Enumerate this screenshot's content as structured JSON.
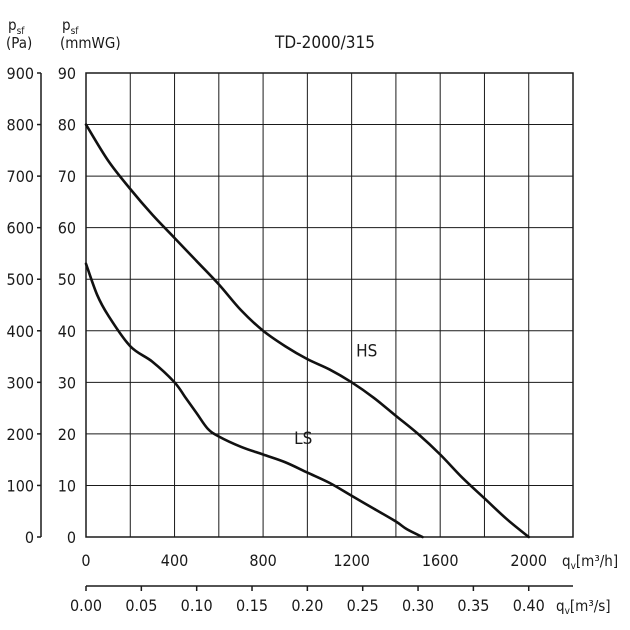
{
  "chart_data": {
    "type": "line",
    "title": "TD-2000/315",
    "y_left": {
      "symbol": "p",
      "subscript": "sf",
      "unit": "(Pa)",
      "ylim": [
        0,
        900
      ],
      "ticks": [
        0,
        100,
        200,
        300,
        400,
        500,
        600,
        700,
        800,
        900
      ]
    },
    "y_right": {
      "symbol": "p",
      "subscript": "sf",
      "unit": "(mmWG)",
      "ylim": [
        0,
        90
      ],
      "ticks": [
        0,
        10,
        20,
        30,
        40,
        50,
        60,
        70,
        80,
        90
      ]
    },
    "x_main": {
      "symbol": "q",
      "subscript": "v",
      "unit": "[m³/h]",
      "xlim": [
        0,
        2200
      ],
      "ticks": [
        0,
        400,
        800,
        1200,
        1600,
        2000
      ],
      "grid_step": 200
    },
    "x_secondary": {
      "symbol": "q",
      "subscript": "v",
      "unit": "[m³/s]",
      "ticks": [
        "0.00",
        "0.05",
        "0.10",
        "0.15",
        "0.20",
        "0.25",
        "0.30",
        "0.35",
        "0.40"
      ]
    },
    "grid": true,
    "series": [
      {
        "name": "HS",
        "label_at": [
          1220,
          350
        ],
        "x": [
          0,
          100,
          200,
          300,
          400,
          500,
          600,
          700,
          800,
          900,
          1000,
          1100,
          1200,
          1300,
          1400,
          1500,
          1600,
          1700,
          1800,
          1900,
          2000
        ],
        "y": [
          800,
          730,
          675,
          625,
          580,
          535,
          490,
          440,
          400,
          370,
          345,
          325,
          300,
          270,
          235,
          200,
          160,
          115,
          75,
          35,
          0
        ]
      },
      {
        "name": "LS",
        "label_at": [
          940,
          180
        ],
        "x": [
          0,
          50,
          100,
          200,
          300,
          400,
          450,
          500,
          550,
          600,
          700,
          800,
          900,
          1000,
          1100,
          1200,
          1300,
          1400,
          1450,
          1520
        ],
        "y": [
          530,
          470,
          430,
          370,
          340,
          300,
          270,
          240,
          210,
          195,
          175,
          160,
          145,
          125,
          105,
          80,
          55,
          30,
          15,
          0
        ]
      }
    ]
  }
}
